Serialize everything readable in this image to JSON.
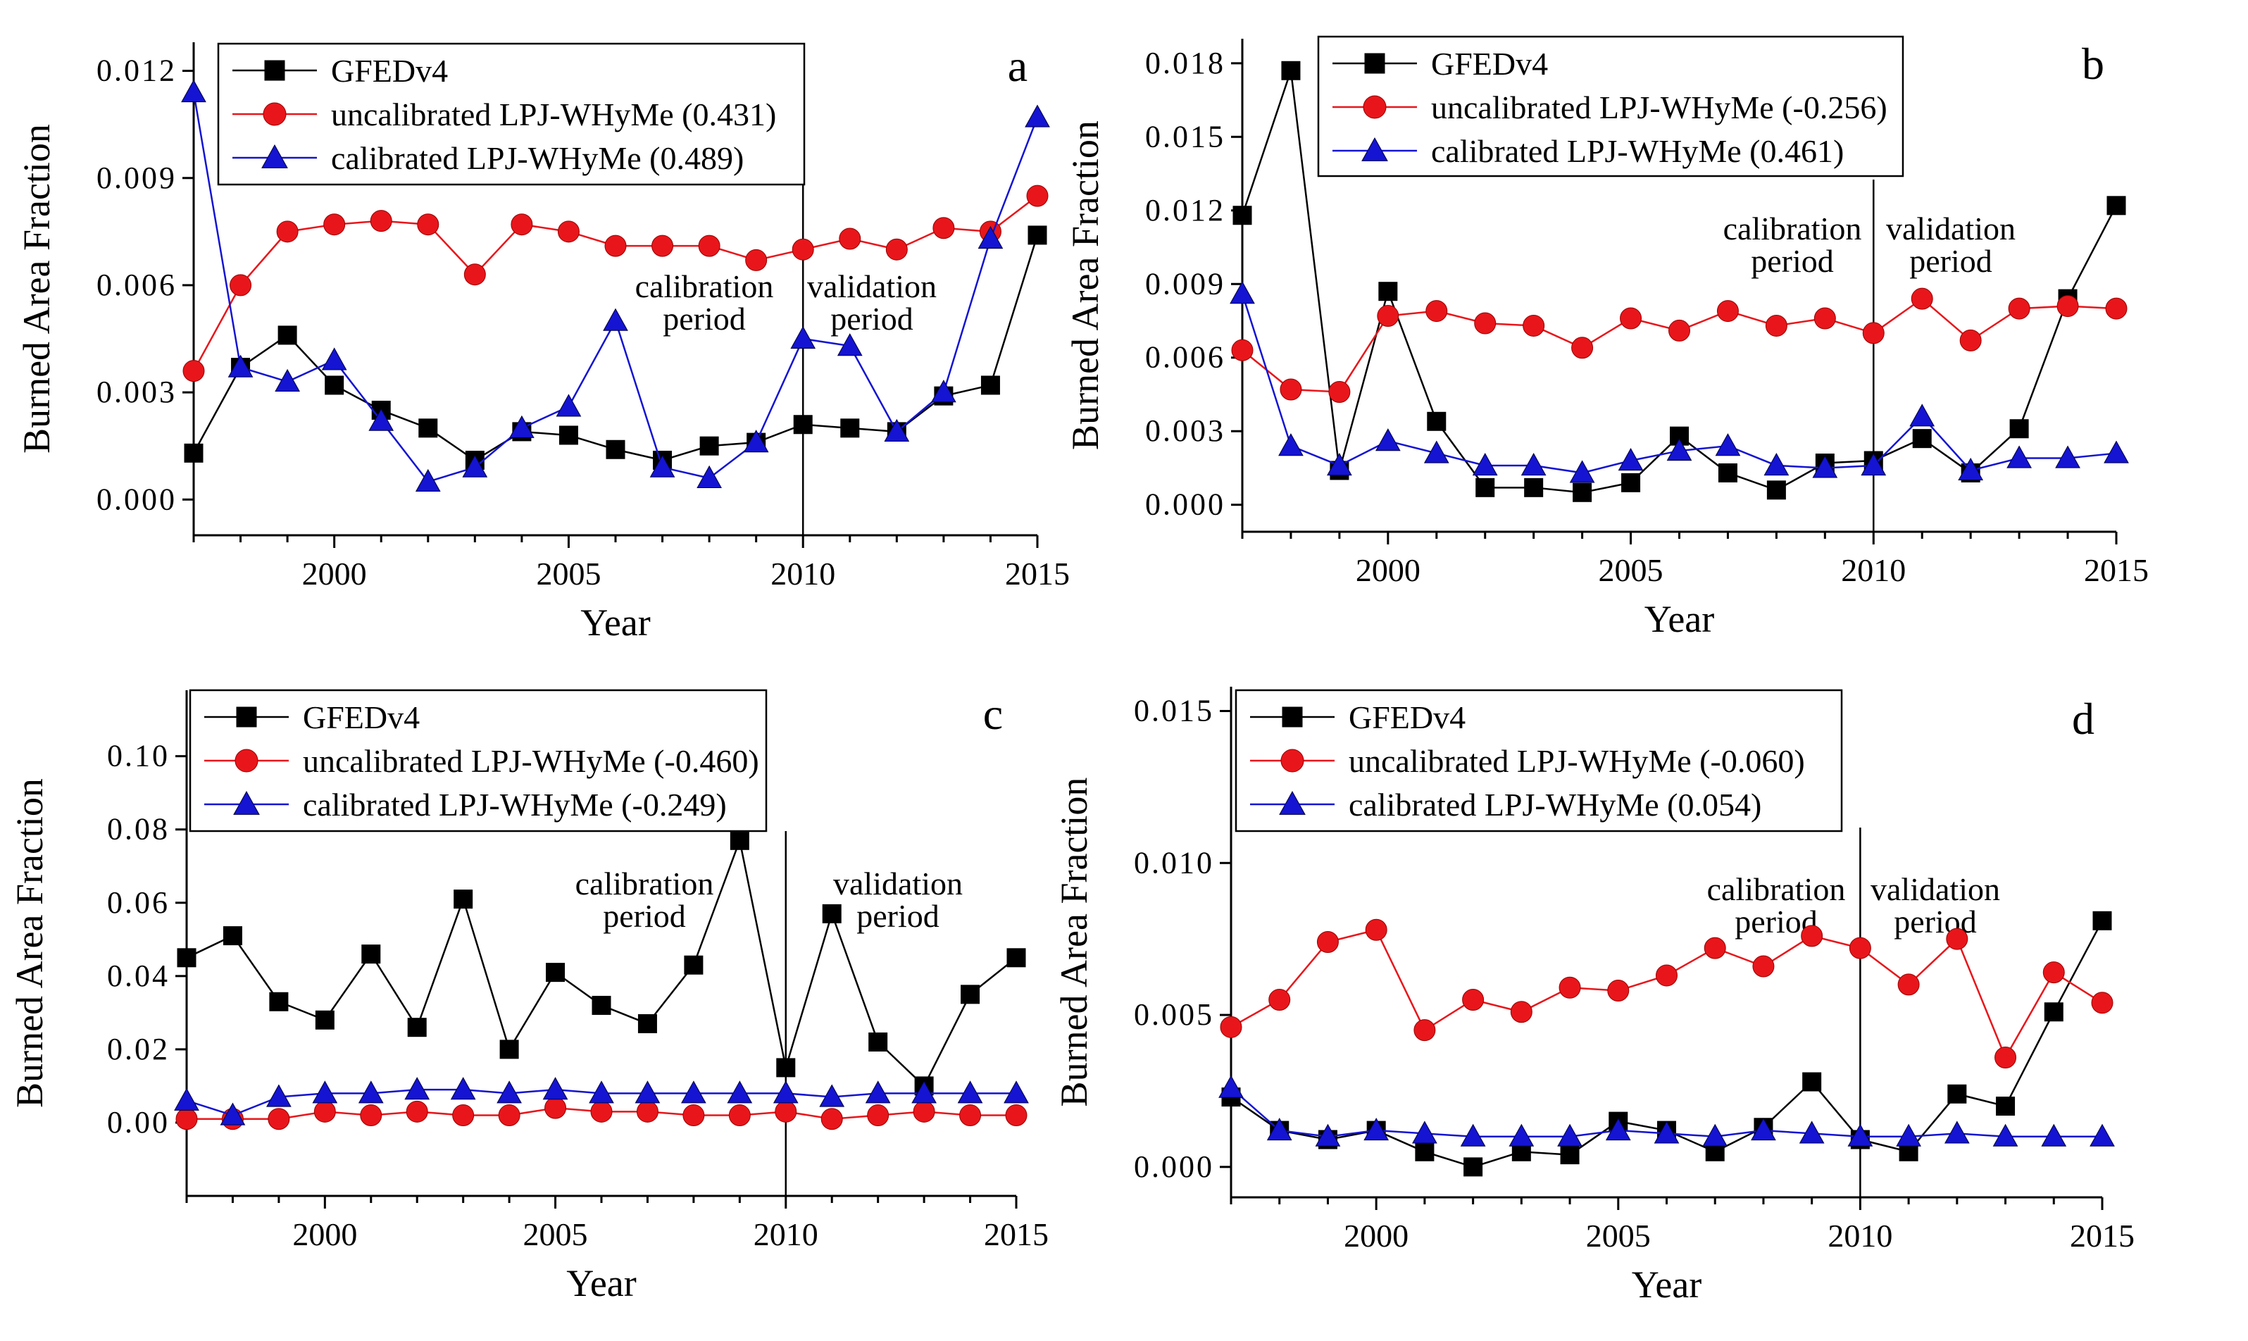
{
  "figure": {
    "xlabel": "Year",
    "ylabel": "Burned Area Fraction"
  },
  "chart_data": [
    {
      "panel": "a",
      "type": "line",
      "xlabel": "Year",
      "ylabel": "Burned Area Fraction",
      "xlim": [
        1997,
        2015
      ],
      "ylim": [
        -0.001,
        0.0128
      ],
      "xticks": [
        2000,
        2005,
        2010,
        2015
      ],
      "yticks": [
        0.0,
        0.003,
        0.006,
        0.009,
        0.012
      ],
      "ytick_labels": [
        "0.000",
        "0.003",
        "0.006",
        "0.009",
        "0.012"
      ],
      "x": [
        1997,
        1998,
        1999,
        2000,
        2001,
        2002,
        2003,
        2004,
        2005,
        2006,
        2007,
        2008,
        2009,
        2010,
        2011,
        2012,
        2013,
        2014,
        2015
      ],
      "split_year": 2010,
      "annotations": {
        "calibration": [
          "calibration",
          "period"
        ],
        "validation": [
          "validation",
          "period"
        ]
      },
      "series": [
        {
          "name": "GFEDv4",
          "color": "#000000",
          "marker": "square",
          "values": [
            0.0013,
            0.0037,
            0.0046,
            0.0032,
            0.0025,
            0.002,
            0.0011,
            0.0019,
            0.0018,
            0.0014,
            0.0011,
            0.0015,
            0.0016,
            0.0021,
            0.002,
            0.0019,
            0.0029,
            0.0032,
            0.0074
          ]
        },
        {
          "name": "uncalibrated LPJ-WHyMe (0.431)",
          "color": "#e8161b",
          "marker": "circle",
          "values": [
            0.0036,
            0.006,
            0.0075,
            0.0077,
            0.0078,
            0.0077,
            0.0063,
            0.0077,
            0.0075,
            0.0071,
            0.0071,
            0.0071,
            0.0067,
            0.007,
            0.0073,
            0.007,
            0.0076,
            0.0075,
            0.0085
          ]
        },
        {
          "name": "calibrated LPJ-WHyMe (0.489)",
          "color": "#1414d2",
          "marker": "triangle",
          "values": [
            0.0114,
            0.0037,
            0.0033,
            0.0039,
            0.0022,
            0.0005,
            0.0009,
            0.002,
            0.0026,
            0.005,
            0.0009,
            0.0006,
            0.0016,
            0.0045,
            0.0043,
            0.0019,
            0.003,
            0.0073,
            0.0107
          ]
        }
      ]
    },
    {
      "panel": "b",
      "type": "line",
      "xlabel": "Year",
      "ylabel": "Burned Area Fraction",
      "xlim": [
        1997,
        2015
      ],
      "ylim": [
        -0.0011,
        0.019
      ],
      "xticks": [
        2000,
        2005,
        2010,
        2015
      ],
      "yticks": [
        0.0,
        0.003,
        0.006,
        0.009,
        0.012,
        0.015,
        0.018
      ],
      "ytick_labels": [
        "0.000",
        "0.003",
        "0.006",
        "0.009",
        "0.012",
        "0.015",
        "0.018"
      ],
      "x": [
        1997,
        1998,
        1999,
        2000,
        2001,
        2002,
        2003,
        2004,
        2005,
        2006,
        2007,
        2008,
        2009,
        2010,
        2011,
        2012,
        2013,
        2014,
        2015
      ],
      "split_year": 2010,
      "annotations": {
        "calibration": [
          "calibration",
          "period"
        ],
        "validation": [
          "validation",
          "period"
        ]
      },
      "series": [
        {
          "name": "GFEDv4",
          "color": "#000000",
          "marker": "square",
          "values": [
            0.0118,
            0.0177,
            0.0014,
            0.0087,
            0.0034,
            0.0007,
            0.0007,
            0.0005,
            0.0009,
            0.0028,
            0.0013,
            0.0006,
            0.0017,
            0.0018,
            0.0027,
            0.0013,
            0.0031,
            0.0084,
            0.0122
          ]
        },
        {
          "name": "uncalibrated LPJ-WHyMe (-0.256)",
          "color": "#e8161b",
          "marker": "circle",
          "values": [
            0.0063,
            0.0047,
            0.0046,
            0.0077,
            0.0079,
            0.0074,
            0.0073,
            0.0064,
            0.0076,
            0.0071,
            0.0079,
            0.0073,
            0.0076,
            0.007,
            0.0084,
            0.0067,
            0.008,
            0.0081,
            0.008
          ]
        },
        {
          "name": "calibrated LPJ-WHyMe (0.461)",
          "color": "#1414d2",
          "marker": "triangle",
          "values": [
            0.0086,
            0.0024,
            0.0016,
            0.0026,
            0.0021,
            0.0016,
            0.0016,
            0.0013,
            0.0018,
            0.0022,
            0.0024,
            0.0016,
            0.0015,
            0.0016,
            0.0036,
            0.0014,
            0.0019,
            0.0019,
            0.0021
          ]
        }
      ]
    },
    {
      "panel": "c",
      "type": "line",
      "xlabel": "Year",
      "ylabel": "Burned Area Fraction",
      "xlim": [
        1997,
        2015
      ],
      "ylim": [
        -0.02,
        0.118
      ],
      "xticks": [
        2000,
        2005,
        2010,
        2015
      ],
      "yticks": [
        0.0,
        0.02,
        0.04,
        0.06,
        0.08,
        0.1
      ],
      "ytick_labels": [
        "0.00",
        "0.02",
        "0.04",
        "0.06",
        "0.08",
        "0.10"
      ],
      "x": [
        1997,
        1998,
        1999,
        2000,
        2001,
        2002,
        2003,
        2004,
        2005,
        2006,
        2007,
        2008,
        2009,
        2010,
        2011,
        2012,
        2013,
        2014,
        2015
      ],
      "split_year": 2010,
      "annotations": {
        "calibration": [
          "calibration",
          "period"
        ],
        "validation": [
          "validation",
          "period"
        ]
      },
      "series": [
        {
          "name": "GFEDv4",
          "color": "#000000",
          "marker": "square",
          "values": [
            0.045,
            0.051,
            0.033,
            0.028,
            0.046,
            0.026,
            0.061,
            0.02,
            0.041,
            0.032,
            0.027,
            0.043,
            0.077,
            0.015,
            0.057,
            0.022,
            0.01,
            0.035,
            0.045
          ]
        },
        {
          "name": "uncalibrated LPJ-WHyMe (-0.460)",
          "color": "#e8161b",
          "marker": "circle",
          "values": [
            0.001,
            0.001,
            0.001,
            0.003,
            0.002,
            0.003,
            0.002,
            0.002,
            0.004,
            0.003,
            0.003,
            0.002,
            0.002,
            0.003,
            0.001,
            0.002,
            0.003,
            0.002,
            0.002
          ]
        },
        {
          "name": "calibrated LPJ-WHyMe (-0.249)",
          "color": "#1414d2",
          "marker": "triangle",
          "values": [
            0.006,
            0.002,
            0.007,
            0.008,
            0.008,
            0.009,
            0.009,
            0.008,
            0.009,
            0.008,
            0.008,
            0.008,
            0.008,
            0.008,
            0.007,
            0.008,
            0.008,
            0.008,
            0.008
          ]
        }
      ]
    },
    {
      "panel": "d",
      "type": "line",
      "xlabel": "Year",
      "ylabel": "Burned Area Fraction",
      "xlim": [
        1997,
        2015
      ],
      "ylim": [
        -0.001,
        0.0158
      ],
      "xticks": [
        2000,
        2005,
        2010,
        2015
      ],
      "yticks": [
        0.0,
        0.005,
        0.01,
        0.015
      ],
      "ytick_labels": [
        "0.000",
        "0.005",
        "0.010",
        "0.015"
      ],
      "x": [
        1997,
        1998,
        1999,
        2000,
        2001,
        2002,
        2003,
        2004,
        2005,
        2006,
        2007,
        2008,
        2009,
        2010,
        2011,
        2012,
        2013,
        2014,
        2015
      ],
      "split_year": 2010,
      "annotations": {
        "calibration": [
          "calibration",
          "period"
        ],
        "validation": [
          "validation",
          "period"
        ]
      },
      "series": [
        {
          "name": "GFEDv4",
          "color": "#000000",
          "marker": "square",
          "values": [
            0.0023,
            0.0012,
            0.0009,
            0.0012,
            0.0005,
            0.0,
            0.0005,
            0.0004,
            0.0015,
            0.0012,
            0.0005,
            0.0013,
            0.0028,
            0.0009,
            0.0005,
            0.0024,
            0.002,
            0.0051,
            0.0081
          ]
        },
        {
          "name": "uncalibrated LPJ-WHyMe (-0.060)",
          "color": "#e8161b",
          "marker": "circle",
          "values": [
            0.0046,
            0.0055,
            0.0074,
            0.0078,
            0.0045,
            0.0055,
            0.0051,
            0.0059,
            0.0058,
            0.0063,
            0.0072,
            0.0066,
            0.0076,
            0.0072,
            0.006,
            0.0075,
            0.0036,
            0.0064,
            0.0054
          ]
        },
        {
          "name": "calibrated LPJ-WHyMe (0.054)",
          "color": "#1414d2",
          "marker": "triangle",
          "values": [
            0.0026,
            0.0012,
            0.001,
            0.0012,
            0.0011,
            0.001,
            0.001,
            0.001,
            0.0012,
            0.0011,
            0.001,
            0.0012,
            0.0011,
            0.001,
            0.001,
            0.0011,
            0.001,
            0.001,
            0.001
          ]
        }
      ]
    }
  ]
}
